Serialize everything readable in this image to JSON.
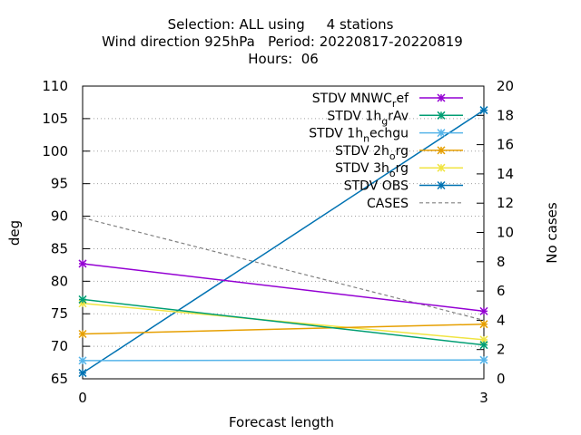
{
  "chart_data": {
    "type": "line",
    "title_lines": [
      "Selection: ALL using     4 stations",
      "Wind direction 925hPa   Period: 20220817-20220819",
      "Hours:  06"
    ],
    "xlabel": "Forecast length",
    "ylabel": "deg",
    "y2label": "No cases",
    "x": [
      0,
      3
    ],
    "xlim": [
      0,
      3
    ],
    "xticks": [
      0,
      3
    ],
    "ylim": [
      65,
      110
    ],
    "yticks": [
      65,
      70,
      75,
      80,
      85,
      90,
      95,
      100,
      105,
      110
    ],
    "y2lim": [
      0,
      20
    ],
    "y2ticks": [
      0,
      2,
      4,
      6,
      8,
      10,
      12,
      14,
      16,
      18,
      20
    ],
    "grid": true,
    "legend_position": "top-right",
    "series": [
      {
        "name": "STDV MNWC_ref",
        "legend": {
          "pre": "STDV MNWC",
          "sub": "r",
          "post": "ef"
        },
        "color": "#9400d3",
        "axis": "y",
        "marker": "x",
        "values": [
          82.7,
          75.4
        ]
      },
      {
        "name": "STDV 1h_grAv",
        "legend": {
          "pre": "STDV 1h",
          "sub": "g",
          "post": "rAv"
        },
        "color": "#009e73",
        "axis": "y",
        "marker": "x",
        "values": [
          77.2,
          70.2
        ]
      },
      {
        "name": "STDV 1h_nechgu",
        "legend": {
          "pre": "STDV 1h",
          "sub": "n",
          "post": "echgu"
        },
        "color": "#56b4e9",
        "axis": "y",
        "marker": "x",
        "values": [
          67.8,
          67.9
        ]
      },
      {
        "name": "STDV 2h_org",
        "legend": {
          "pre": "STDV 2h",
          "sub": "o",
          "post": "rg"
        },
        "color": "#e69f00",
        "axis": "y",
        "marker": "x",
        "values": [
          71.9,
          73.4
        ]
      },
      {
        "name": "STDV 3h_org",
        "legend": {
          "pre": "STDV 3h",
          "sub": "o",
          "post": "rg"
        },
        "color": "#f0e442",
        "axis": "y",
        "marker": "x",
        "values": [
          76.6,
          71.0
        ]
      },
      {
        "name": "STDV OBS",
        "legend": {
          "pre": "STDV OBS",
          "sub": "",
          "post": ""
        },
        "color": "#0072b2",
        "axis": "y",
        "marker": "x",
        "values": [
          65.9,
          106.3
        ]
      },
      {
        "name": "CASES",
        "legend": {
          "pre": "CASES",
          "sub": "",
          "post": ""
        },
        "color": "#808080",
        "axis": "y2",
        "marker": "none",
        "dashed": true,
        "values": [
          11,
          4
        ]
      }
    ]
  }
}
